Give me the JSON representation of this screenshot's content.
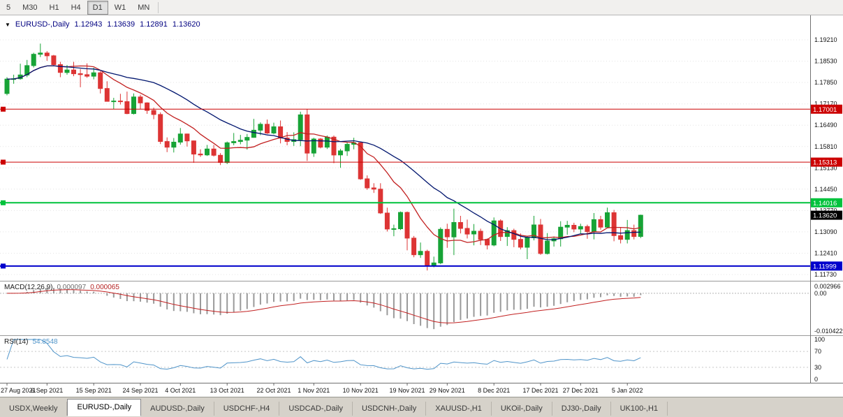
{
  "toolbar": {
    "timeframes": [
      {
        "label": "5",
        "active": false
      },
      {
        "label": "M30",
        "active": false
      },
      {
        "label": "H1",
        "active": false
      },
      {
        "label": "H4",
        "active": false
      },
      {
        "label": "D1",
        "active": true
      },
      {
        "label": "W1",
        "active": false
      },
      {
        "label": "MN",
        "active": false
      }
    ]
  },
  "chart_header": {
    "symbol": "EURUSD-,Daily",
    "open": "1.12943",
    "high": "1.13639",
    "low": "1.12891",
    "close": "1.13620"
  },
  "chart_data": {
    "type": "candlestick",
    "symbol": "EURUSD-",
    "timeframe": "Daily",
    "price_range": [
      1.1153,
      1.1999
    ],
    "price_axis_ticks": [
      "1.19210",
      "1.18530",
      "1.17850",
      "1.17170",
      "1.16490",
      "1.15810",
      "1.15130",
      "1.14450",
      "1.13770",
      "1.13090",
      "1.12410",
      "1.11730"
    ],
    "x_tick_labels": [
      "27 Aug 2021",
      "6 Sep 2021",
      "15 Sep 2021",
      "24 Sep 2021",
      "4 Oct 2021",
      "13 Oct 2021",
      "22 Oct 2021",
      "1 Nov 2021",
      "10 Nov 2021",
      "19 Nov 2021",
      "29 Nov 2021",
      "8 Dec 2021",
      "17 Dec 2021",
      "27 Dec 2021",
      "5 Jan 2022"
    ],
    "x_tick_indices": [
      0,
      6,
      13,
      20,
      26,
      33,
      40,
      46,
      53,
      60,
      66,
      73,
      80,
      86,
      93
    ],
    "candles_ohlc": [
      [
        1.175,
        1.1802,
        1.1744,
        1.1796
      ],
      [
        1.1796,
        1.181,
        1.1781,
        1.1797
      ],
      [
        1.1797,
        1.1845,
        1.1794,
        1.1809
      ],
      [
        1.1809,
        1.1857,
        1.1802,
        1.1839
      ],
      [
        1.1839,
        1.188,
        1.1833,
        1.1875
      ],
      [
        1.1875,
        1.1909,
        1.1866,
        1.1879
      ],
      [
        1.1879,
        1.1885,
        1.1854,
        1.187
      ],
      [
        1.187,
        1.1873,
        1.1837,
        1.1842
      ],
      [
        1.1842,
        1.1851,
        1.1802,
        1.1817
      ],
      [
        1.1817,
        1.1841,
        1.181,
        1.1825
      ],
      [
        1.1825,
        1.1851,
        1.1805,
        1.1813
      ],
      [
        1.1813,
        1.1828,
        1.177,
        1.181
      ],
      [
        1.181,
        1.1846,
        1.18,
        1.1805
      ],
      [
        1.1805,
        1.1832,
        1.1795,
        1.1816
      ],
      [
        1.1816,
        1.1821,
        1.175,
        1.1766
      ],
      [
        1.1766,
        1.1789,
        1.1724,
        1.1725
      ],
      [
        1.1725,
        1.1736,
        1.17,
        1.1726
      ],
      [
        1.1726,
        1.1749,
        1.1715,
        1.1724
      ],
      [
        1.1724,
        1.1756,
        1.1684,
        1.1686
      ],
      [
        1.1686,
        1.175,
        1.1683,
        1.1739
      ],
      [
        1.1739,
        1.1746,
        1.1701,
        1.172
      ],
      [
        1.172,
        1.1722,
        1.1685,
        1.1696
      ],
      [
        1.1696,
        1.1705,
        1.1668,
        1.1683
      ],
      [
        1.1683,
        1.169,
        1.1589,
        1.1597
      ],
      [
        1.1597,
        1.161,
        1.1563,
        1.1579
      ],
      [
        1.1579,
        1.1608,
        1.1562,
        1.1595
      ],
      [
        1.1595,
        1.164,
        1.1587,
        1.1621
      ],
      [
        1.1621,
        1.1622,
        1.1581,
        1.1599
      ],
      [
        1.1599,
        1.16,
        1.1529,
        1.1557
      ],
      [
        1.1557,
        1.1572,
        1.1548,
        1.1554
      ],
      [
        1.1554,
        1.1586,
        1.1551,
        1.1573
      ],
      [
        1.1573,
        1.1586,
        1.1549,
        1.1553
      ],
      [
        1.1553,
        1.156,
        1.1522,
        1.153
      ],
      [
        1.153,
        1.1597,
        1.1525,
        1.1593
      ],
      [
        1.1593,
        1.1624,
        1.1585,
        1.1597
      ],
      [
        1.1597,
        1.1618,
        1.1588,
        1.1601
      ],
      [
        1.1601,
        1.1621,
        1.1571,
        1.161
      ],
      [
        1.161,
        1.1669,
        1.1609,
        1.1633
      ],
      [
        1.1633,
        1.1658,
        1.1617,
        1.1652
      ],
      [
        1.1652,
        1.1667,
        1.1621,
        1.1624
      ],
      [
        1.1624,
        1.1657,
        1.162,
        1.1644
      ],
      [
        1.1644,
        1.1664,
        1.1591,
        1.1608
      ],
      [
        1.1608,
        1.1627,
        1.1585,
        1.1597
      ],
      [
        1.1597,
        1.1626,
        1.1583,
        1.1603
      ],
      [
        1.1603,
        1.1692,
        1.1582,
        1.1682
      ],
      [
        1.1682,
        1.17,
        1.1535,
        1.156
      ],
      [
        1.156,
        1.1609,
        1.1548,
        1.1605
      ],
      [
        1.1605,
        1.1608,
        1.1575,
        1.1579
      ],
      [
        1.1579,
        1.1616,
        1.1573,
        1.1611
      ],
      [
        1.1611,
        1.1616,
        1.1528,
        1.1554
      ],
      [
        1.1554,
        1.1573,
        1.1513,
        1.1567
      ],
      [
        1.1567,
        1.1595,
        1.1551,
        1.1588
      ],
      [
        1.1588,
        1.1609,
        1.1572,
        1.1593
      ],
      [
        1.1593,
        1.1595,
        1.1475,
        1.1478
      ],
      [
        1.1478,
        1.1489,
        1.1443,
        1.1449
      ],
      [
        1.1449,
        1.1464,
        1.1433,
        1.1445
      ],
      [
        1.1445,
        1.1464,
        1.1366,
        1.1369
      ],
      [
        1.1369,
        1.1386,
        1.131,
        1.1318
      ],
      [
        1.1318,
        1.1332,
        1.1295,
        1.1319
      ],
      [
        1.1319,
        1.1374,
        1.1315,
        1.1371
      ],
      [
        1.1371,
        1.1374,
        1.125,
        1.1289
      ],
      [
        1.1289,
        1.1296,
        1.1228,
        1.1236
      ],
      [
        1.1236,
        1.1275,
        1.1226,
        1.1247
      ],
      [
        1.1247,
        1.1252,
        1.1186,
        1.12
      ],
      [
        1.12,
        1.123,
        1.1196,
        1.121
      ],
      [
        1.121,
        1.1323,
        1.1206,
        1.1317
      ],
      [
        1.1317,
        1.1335,
        1.1258,
        1.1293
      ],
      [
        1.1293,
        1.1383,
        1.1235,
        1.1339
      ],
      [
        1.1339,
        1.136,
        1.1304,
        1.132
      ],
      [
        1.132,
        1.1348,
        1.1288,
        1.1302
      ],
      [
        1.1302,
        1.1334,
        1.1266,
        1.1311
      ],
      [
        1.1311,
        1.1319,
        1.1267,
        1.1285
      ],
      [
        1.1285,
        1.1288,
        1.1253,
        1.1267
      ],
      [
        1.1267,
        1.1355,
        1.1263,
        1.1344
      ],
      [
        1.1344,
        1.1349,
        1.128,
        1.1294
      ],
      [
        1.1294,
        1.1324,
        1.1264,
        1.1313
      ],
      [
        1.1313,
        1.1319,
        1.126,
        1.1285
      ],
      [
        1.1285,
        1.1304,
        1.1253,
        1.126
      ],
      [
        1.126,
        1.1296,
        1.1222,
        1.129
      ],
      [
        1.129,
        1.136,
        1.1282,
        1.1331
      ],
      [
        1.1331,
        1.135,
        1.1236,
        1.124
      ],
      [
        1.124,
        1.1305,
        1.1237,
        1.128
      ],
      [
        1.128,
        1.1294,
        1.1262,
        1.1287
      ],
      [
        1.1287,
        1.1343,
        1.1262,
        1.1324
      ],
      [
        1.1324,
        1.1344,
        1.13,
        1.133
      ],
      [
        1.133,
        1.1338,
        1.1308,
        1.1318
      ],
      [
        1.1318,
        1.1335,
        1.1304,
        1.1326
      ],
      [
        1.1326,
        1.1332,
        1.1287,
        1.131
      ],
      [
        1.131,
        1.1369,
        1.1285,
        1.1348
      ],
      [
        1.1348,
        1.136,
        1.1316,
        1.1324
      ],
      [
        1.1324,
        1.1386,
        1.1321,
        1.137
      ],
      [
        1.137,
        1.1379,
        1.1279,
        1.1297
      ],
      [
        1.1297,
        1.1323,
        1.1272,
        1.1285
      ],
      [
        1.1285,
        1.1347,
        1.1272,
        1.1313
      ],
      [
        1.1313,
        1.1332,
        1.1285,
        1.1294
      ],
      [
        1.12943,
        1.13639,
        1.12891,
        1.1362
      ]
    ],
    "levels": [
      {
        "price": 1.17001,
        "label": "1.17001",
        "color": "#cc0000",
        "width": 1
      },
      {
        "price": 1.15313,
        "label": "1.15313",
        "color": "#cc0000",
        "width": 1
      },
      {
        "price": 1.14016,
        "label": "1.14016",
        "color": "#00c23c",
        "width": 2
      },
      {
        "price": 1.11999,
        "label": "1.11999",
        "color": "#0000cc",
        "width": 2
      }
    ],
    "current_price": {
      "value": 1.1362,
      "label": "1.13620"
    },
    "moving_averages": [
      {
        "name": "ma-fast",
        "period": 10,
        "color": "#c22020"
      },
      {
        "name": "ma-slow",
        "period": 22,
        "color": "#00156e"
      }
    ],
    "macd": {
      "label": "MACD(12,26,9)",
      "value_main": "0.000097",
      "value_signal": "0.000065",
      "axis": [
        "0.002966",
        "0.00",
        "-0.010422"
      ],
      "fast": 12,
      "slow": 26,
      "signal_period": 9,
      "histogram_color": "#9a9a9a",
      "signal_color": "#c22020"
    },
    "rsi": {
      "label": "RSI(14)",
      "value_text": "54.8548",
      "period": 14,
      "axis": [
        "100",
        "70",
        "30",
        "0"
      ],
      "levels": [
        70,
        30
      ],
      "line_color": "#4f94c9"
    }
  },
  "colors": {
    "up_candle": "#17a336",
    "down_candle": "#dd3434",
    "grid": "#e4e4e4",
    "pane_divider": "#9a9a9a",
    "axis_border": "#707070",
    "current_price_bg": "#000000"
  },
  "tabs": [
    {
      "label": "USDX,Weekly",
      "active": false
    },
    {
      "label": "EURUSD-,Daily",
      "active": true
    },
    {
      "label": "AUDUSD-,Daily",
      "active": false
    },
    {
      "label": "USDCHF-,H4",
      "active": false
    },
    {
      "label": "USDCAD-,Daily",
      "active": false
    },
    {
      "label": "USDCNH-,Daily",
      "active": false
    },
    {
      "label": "XAUUSD-,H1",
      "active": false
    },
    {
      "label": "UKOil-,Daily",
      "active": false
    },
    {
      "label": "DJ30-,Daily",
      "active": false
    },
    {
      "label": "UK100-,H1",
      "active": false
    }
  ]
}
